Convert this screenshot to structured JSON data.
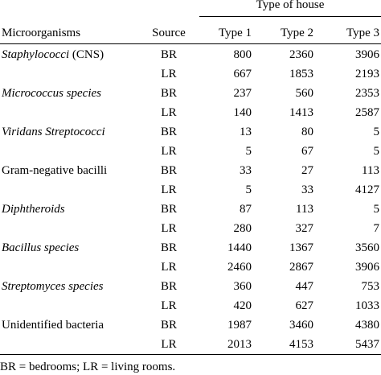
{
  "header": {
    "group_label": "Type of house",
    "col_microorganisms": "Microorganisms",
    "col_source": "Source",
    "col_type1": "Type 1",
    "col_type2": "Type 2",
    "col_type3": "Type 3"
  },
  "rows": [
    {
      "organism": "Staphylococci",
      "organism_suffix": " (CNS)",
      "italic": true,
      "source": "BR",
      "t1": "800",
      "t2": "2360",
      "t3": "3906"
    },
    {
      "organism": "",
      "organism_suffix": "",
      "italic": false,
      "source": "LR",
      "t1": "667",
      "t2": "1853",
      "t3": "2193"
    },
    {
      "organism": "Micrococcus species",
      "organism_suffix": "",
      "italic": true,
      "source": "BR",
      "t1": "237",
      "t2": "560",
      "t3": "2353"
    },
    {
      "organism": "",
      "organism_suffix": "",
      "italic": false,
      "source": "LR",
      "t1": "140",
      "t2": "1413",
      "t3": "2587"
    },
    {
      "organism": "Viridans Streptococci",
      "organism_suffix": "",
      "italic": true,
      "source": "BR",
      "t1": "13",
      "t2": "80",
      "t3": "5"
    },
    {
      "organism": "",
      "organism_suffix": "",
      "italic": false,
      "source": "LR",
      "t1": "5",
      "t2": "67",
      "t3": "5"
    },
    {
      "organism": "Gram-negative bacilli",
      "organism_suffix": "",
      "italic": false,
      "source": "BR",
      "t1": "33",
      "t2": "27",
      "t3": "113"
    },
    {
      "organism": "",
      "organism_suffix": "",
      "italic": false,
      "source": "LR",
      "t1": "5",
      "t2": "33",
      "t3": "4127"
    },
    {
      "organism": "Diphtheroids",
      "organism_suffix": "",
      "italic": true,
      "source": "BR",
      "t1": "87",
      "t2": "113",
      "t3": "5"
    },
    {
      "organism": "",
      "organism_suffix": "",
      "italic": false,
      "source": "LR",
      "t1": "280",
      "t2": "327",
      "t3": "7"
    },
    {
      "organism": "Bacillus species",
      "organism_suffix": "",
      "italic": true,
      "source": "BR",
      "t1": "1440",
      "t2": "1367",
      "t3": "3560"
    },
    {
      "organism": "",
      "organism_suffix": "",
      "italic": false,
      "source": "LR",
      "t1": "2460",
      "t2": "2867",
      "t3": "3906"
    },
    {
      "organism": "Streptomyces species",
      "organism_suffix": "",
      "italic": true,
      "source": "BR",
      "t1": "360",
      "t2": "447",
      "t3": "753"
    },
    {
      "organism": "",
      "organism_suffix": "",
      "italic": false,
      "source": "LR",
      "t1": "420",
      "t2": "627",
      "t3": "1033"
    },
    {
      "organism": "Unidentified bacteria",
      "organism_suffix": "",
      "italic": false,
      "source": "BR",
      "t1": "1987",
      "t2": "3460",
      "t3": "4380"
    },
    {
      "organism": "",
      "organism_suffix": "",
      "italic": false,
      "source": "LR",
      "t1": "2013",
      "t2": "4153",
      "t3": "5437"
    }
  ],
  "footnote": "BR = bedrooms; LR = living rooms."
}
